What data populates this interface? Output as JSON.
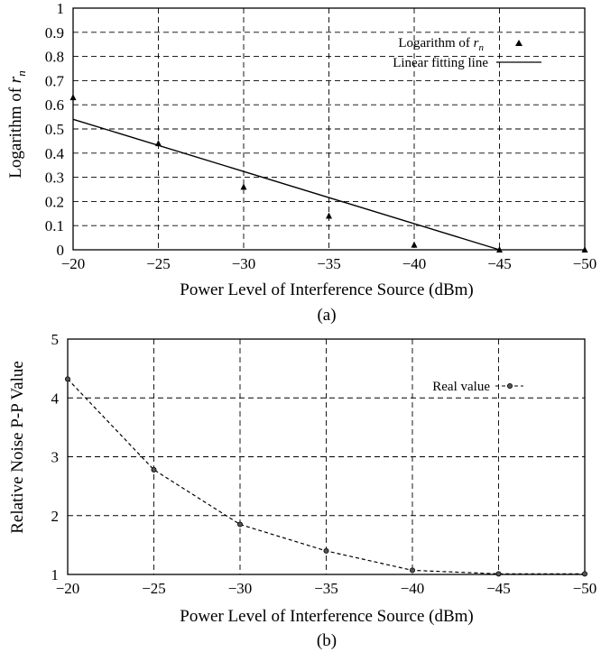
{
  "chart_data": [
    {
      "type": "scatter",
      "panel": "a",
      "caption": "(a)",
      "xlabel": "Power Level of Interference Source (dBm)",
      "ylabel": "Logarithm of r_n",
      "ylabel_prefix": "Logarithm of",
      "ylabel_symbol": "r",
      "ylabel_sub": "n",
      "xlim": [
        -20,
        -50
      ],
      "ylim": [
        0,
        1
      ],
      "x_ticks": [
        "−20",
        "−25",
        "−30",
        "−35",
        "−40",
        "−45",
        "−50"
      ],
      "x_tick_values": [
        -20,
        -25,
        -30,
        -35,
        -40,
        -45,
        -50
      ],
      "y_ticks": [
        "0",
        "0.1",
        "0.2",
        "0.3",
        "0.4",
        "0.5",
        "0.6",
        "0.7",
        "0.8",
        "0.9",
        "1"
      ],
      "y_tick_values": [
        0,
        0.1,
        0.2,
        0.3,
        0.4,
        0.5,
        0.6,
        0.7,
        0.8,
        0.9,
        1
      ],
      "grid": true,
      "legend_position": "top-right",
      "series": [
        {
          "name": "Logarithm of r_n",
          "legend_prefix": "Logarithm of",
          "legend_symbol": "r",
          "legend_sub": "n",
          "marker": "triangle",
          "x": [
            -20,
            -25,
            -30,
            -35,
            -40,
            -45,
            -50
          ],
          "y": [
            0.63,
            0.44,
            0.26,
            0.14,
            0.02,
            0.0,
            0.0
          ]
        },
        {
          "name": "Linear fitting line",
          "style": "solid",
          "x": [
            -20,
            -45
          ],
          "y": [
            0.54,
            0.0
          ]
        }
      ]
    },
    {
      "type": "line",
      "panel": "b",
      "caption": "(b)",
      "xlabel": "Power Level of Interference Source (dBm)",
      "ylabel": "Relative Noise P-P Value",
      "xlim": [
        -20,
        -50
      ],
      "ylim": [
        1,
        5
      ],
      "x_ticks": [
        "−20",
        "−25",
        "−30",
        "−35",
        "−40",
        "−45",
        "−50"
      ],
      "x_tick_values": [
        -20,
        -25,
        -30,
        -35,
        -40,
        -45,
        -50
      ],
      "y_ticks": [
        "1",
        "2",
        "3",
        "4",
        "5"
      ],
      "y_tick_values": [
        1,
        2,
        3,
        4,
        5
      ],
      "grid": true,
      "legend_position": "top-right",
      "series": [
        {
          "name": "Real value",
          "style": "dashed",
          "marker": "circle",
          "x": [
            -20,
            -25,
            -30,
            -35,
            -40,
            -45,
            -50
          ],
          "y": [
            4.32,
            2.78,
            1.85,
            1.4,
            1.07,
            1.01,
            1.01
          ]
        }
      ]
    }
  ]
}
